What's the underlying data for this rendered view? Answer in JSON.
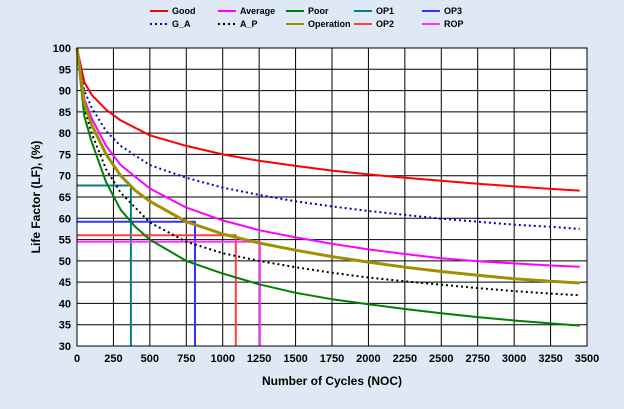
{
  "chart_data": {
    "type": "line",
    "title": "",
    "xlabel": "Number of Cycles (NOC)",
    "ylabel": "Life Factor (LF), (%)",
    "xlim": [
      0,
      3500
    ],
    "ylim": [
      30,
      100
    ],
    "xticks": [
      0,
      250,
      500,
      750,
      1000,
      1250,
      1500,
      1750,
      2000,
      2250,
      2500,
      2750,
      3000,
      3250,
      3500
    ],
    "yticks": [
      30,
      35,
      40,
      45,
      50,
      55,
      60,
      65,
      70,
      75,
      80,
      85,
      90,
      95,
      100
    ],
    "grid": true,
    "legend_position": "top",
    "series": [
      {
        "name": "Good",
        "color": "#ff0000",
        "style": "solid",
        "x": [
          0,
          50,
          100,
          200,
          300,
          500,
          750,
          1000,
          1250,
          1500,
          1750,
          2000,
          2250,
          2500,
          2750,
          3000,
          3250,
          3450
        ],
        "y": [
          100,
          92,
          89,
          85.5,
          83,
          79.5,
          77,
          75,
          73.5,
          72.3,
          71.2,
          70.3,
          69.5,
          68.8,
          68.1,
          67.5,
          66.9,
          66.5
        ]
      },
      {
        "name": "G_A",
        "color": "#0000cc",
        "style": "dotted",
        "x": [
          0,
          50,
          100,
          200,
          300,
          500,
          750,
          1000,
          1250,
          1500,
          1750,
          2000,
          2250,
          2500,
          2750,
          3000,
          3250,
          3450
        ],
        "y": [
          100,
          90,
          86,
          80.5,
          77,
          72.5,
          69.5,
          67.2,
          65.5,
          64,
          62.8,
          61.7,
          60.8,
          59.9,
          59.2,
          58.5,
          58,
          57.5
        ]
      },
      {
        "name": "Average",
        "color": "#ff00ff",
        "style": "solid",
        "x": [
          0,
          50,
          100,
          200,
          300,
          500,
          750,
          1000,
          1250,
          1500,
          1750,
          2000,
          2250,
          2500,
          2750,
          3000,
          3250,
          3450
        ],
        "y": [
          100,
          88,
          83.5,
          77,
          72.5,
          67,
          62.5,
          59.5,
          57.2,
          55.5,
          54,
          52.7,
          51.6,
          50.6,
          49.9,
          49.4,
          48.9,
          48.6
        ]
      },
      {
        "name": "A_P",
        "color": "#000000",
        "style": "dotted",
        "x": [
          0,
          50,
          100,
          200,
          300,
          500,
          750,
          1000,
          1250,
          1500,
          1750,
          2000,
          2250,
          2500,
          2750,
          3000,
          3250,
          3450
        ],
        "y": [
          100,
          86,
          80,
          71.5,
          66,
          59,
          54.5,
          51.8,
          50,
          48.5,
          47.2,
          46.1,
          45.2,
          44.4,
          43.6,
          42.9,
          42.3,
          41.9
        ]
      },
      {
        "name": "Poor",
        "color": "#008000",
        "style": "solid",
        "x": [
          0,
          50,
          100,
          200,
          300,
          400,
          500,
          750,
          1000,
          1250,
          1500,
          1750,
          2000,
          2250,
          2500,
          2750,
          3000,
          3250,
          3450
        ],
        "y": [
          100,
          84,
          78,
          68.5,
          62,
          58,
          55,
          50,
          47,
          44.5,
          42.5,
          41,
          39.8,
          38.7,
          37.7,
          36.8,
          36,
          35.3,
          34.8
        ]
      },
      {
        "name": "Operation",
        "color": "#a09000",
        "style": "solid",
        "x": [
          0,
          50,
          100,
          200,
          300,
          400,
          500,
          750,
          1000,
          1250,
          1500,
          1750,
          2000,
          2250,
          2500,
          2750,
          3000,
          3250,
          3450
        ],
        "y": [
          100,
          87,
          82,
          75,
          70,
          66.5,
          64,
          59.2,
          56.3,
          54.2,
          52.5,
          51,
          49.7,
          48.5,
          47.5,
          46.6,
          45.8,
          45.2,
          44.8
        ]
      },
      {
        "name": "OP1",
        "color": "#008080",
        "style": "solid",
        "points": [
          [
            0,
            67.7
          ],
          [
            370,
            67.7
          ],
          [
            370,
            30
          ]
        ]
      },
      {
        "name": "OP2",
        "color": "#ff4040",
        "style": "solid",
        "points": [
          [
            0,
            56
          ],
          [
            1090,
            56
          ],
          [
            1090,
            30
          ]
        ]
      },
      {
        "name": "OP3",
        "color": "#3333ff",
        "style": "solid",
        "points": [
          [
            0,
            59.2
          ],
          [
            810,
            59.2
          ],
          [
            810,
            30
          ]
        ]
      },
      {
        "name": "ROP",
        "color": "#ff33ff",
        "style": "solid",
        "points": [
          [
            0,
            54.5
          ],
          [
            1255,
            54.5
          ],
          [
            1255,
            30
          ]
        ]
      }
    ],
    "legend": [
      {
        "label": "Good",
        "color": "#ff0000",
        "style": "solid"
      },
      {
        "label": "Average",
        "color": "#ff00ff",
        "style": "solid"
      },
      {
        "label": "Poor",
        "color": "#008000",
        "style": "solid"
      },
      {
        "label": "OP1",
        "color": "#008080",
        "style": "solid"
      },
      {
        "label": "OP3",
        "color": "#3333ff",
        "style": "solid"
      },
      {
        "label": "G_A",
        "color": "#0000cc",
        "style": "dotted"
      },
      {
        "label": "A_P",
        "color": "#000000",
        "style": "dotted"
      },
      {
        "label": "Operation",
        "color": "#a09000",
        "style": "solid"
      },
      {
        "label": "OP2",
        "color": "#ff4040",
        "style": "solid"
      },
      {
        "label": "ROP",
        "color": "#ff33ff",
        "style": "solid"
      }
    ]
  }
}
